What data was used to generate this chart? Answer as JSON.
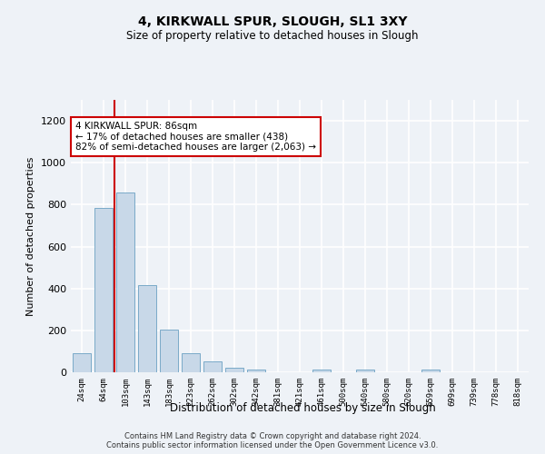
{
  "title": "4, KIRKWALL SPUR, SLOUGH, SL1 3XY",
  "subtitle": "Size of property relative to detached houses in Slough",
  "xlabel": "Distribution of detached houses by size in Slough",
  "ylabel": "Number of detached properties",
  "bar_color": "#c8d8e8",
  "bar_edge_color": "#7aaac8",
  "categories": [
    "24sqm",
    "64sqm",
    "103sqm",
    "143sqm",
    "183sqm",
    "223sqm",
    "262sqm",
    "302sqm",
    "342sqm",
    "381sqm",
    "421sqm",
    "461sqm",
    "500sqm",
    "540sqm",
    "580sqm",
    "620sqm",
    "659sqm",
    "699sqm",
    "739sqm",
    "778sqm",
    "818sqm"
  ],
  "values": [
    90,
    785,
    860,
    415,
    205,
    90,
    52,
    23,
    15,
    0,
    0,
    12,
    0,
    12,
    0,
    0,
    12,
    0,
    0,
    0,
    0
  ],
  "ylim": [
    0,
    1300
  ],
  "yticks": [
    0,
    200,
    400,
    600,
    800,
    1000,
    1200
  ],
  "marker_label": "4 KIRKWALL SPUR: 86sqm",
  "annotation_line1": "← 17% of detached houses are smaller (438)",
  "annotation_line2": "82% of semi-detached houses are larger (2,063) →",
  "annotation_box_color": "#ffffff",
  "annotation_box_edge": "#cc0000",
  "vline_color": "#cc0000",
  "footer_line1": "Contains HM Land Registry data © Crown copyright and database right 2024.",
  "footer_line2": "Contains public sector information licensed under the Open Government Licence v3.0.",
  "background_color": "#eef2f7",
  "grid_color": "#ffffff"
}
